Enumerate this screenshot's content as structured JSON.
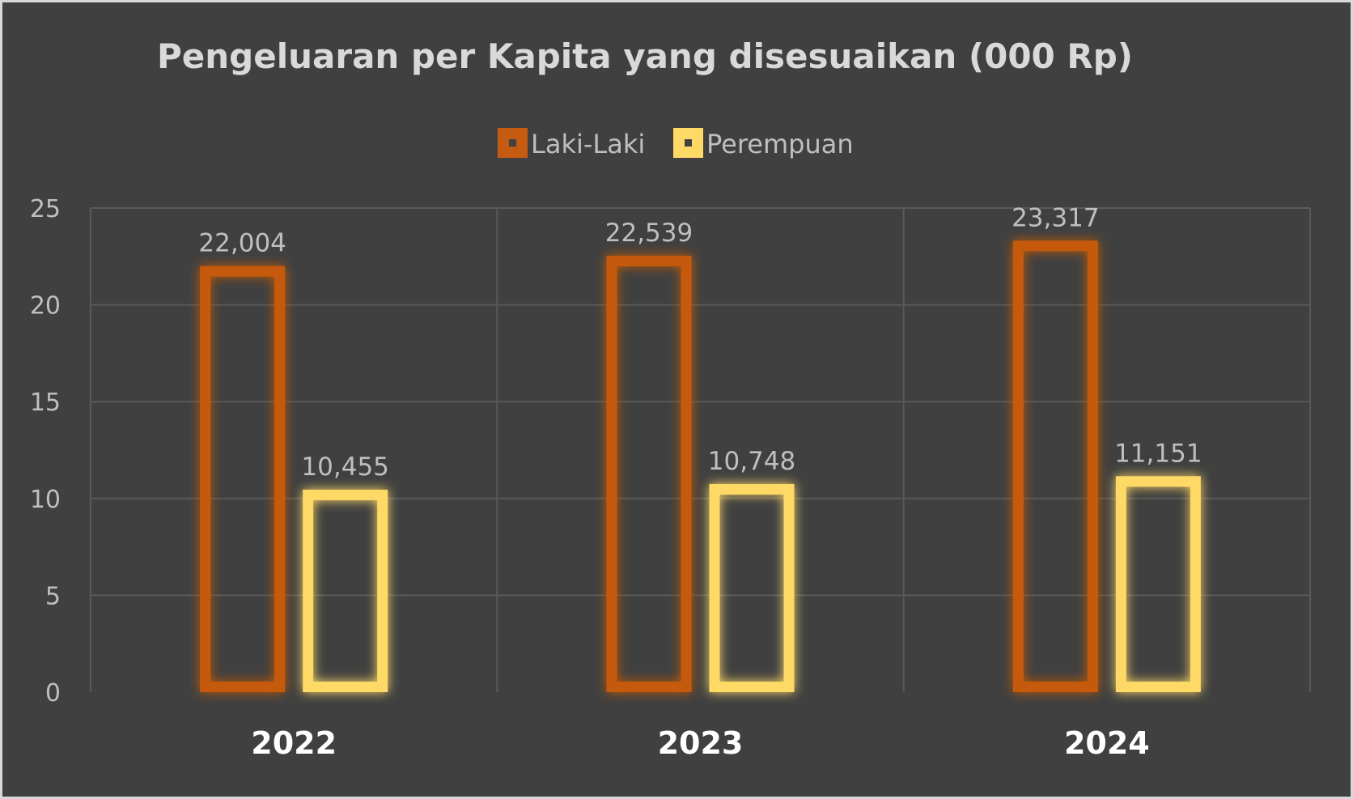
{
  "chart_data": {
    "type": "bar",
    "title": "Pengeluaran per Kapita yang disesuaikan (000 Rp)",
    "xlabel": "",
    "ylabel": "",
    "categories": [
      "2022",
      "2023",
      "2024"
    ],
    "series": [
      {
        "name": "Laki-Laki",
        "color": "#c55a11",
        "values": [
          22.004,
          22.539,
          23.317
        ],
        "labels": [
          "22,004",
          "22,539",
          "23,317"
        ]
      },
      {
        "name": "Perempuan",
        "color": "#ffd966",
        "values": [
          10.455,
          10.748,
          11.151
        ],
        "labels": [
          "10,455",
          "10,748",
          "11,151"
        ]
      }
    ],
    "ylim": [
      0,
      25
    ],
    "yticks": [
      "0",
      "5",
      "10",
      "15",
      "20",
      "25"
    ],
    "grid": true,
    "legend": "top-center",
    "background": "#404040"
  }
}
